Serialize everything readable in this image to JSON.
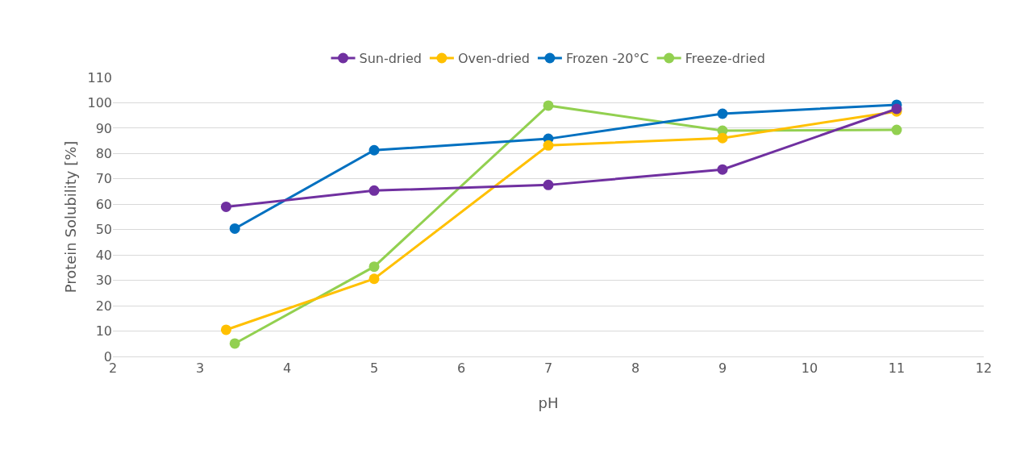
{
  "chart_data": {
    "type": "line",
    "xlabel": "pH",
    "ylabel": "Protein Solubility [%]",
    "xlim": [
      2,
      12
    ],
    "xticks": [
      2,
      3,
      4,
      5,
      6,
      7,
      8,
      9,
      10,
      11,
      12
    ],
    "ylim": [
      0,
      110
    ],
    "yticks": [
      0,
      10,
      20,
      30,
      40,
      50,
      60,
      70,
      80,
      90,
      100,
      110
    ],
    "grid": "y",
    "legend": "top",
    "marker": "circle",
    "line_style": "solid",
    "series": [
      {
        "name": "Sun-dried",
        "color": "#7030a0",
        "x": [
          3.3,
          5,
          7,
          9,
          11
        ],
        "values": [
          59,
          65.4,
          67.6,
          73.7,
          97.6
        ]
      },
      {
        "name": "Oven-dried",
        "color": "#ffc000",
        "x": [
          3.3,
          5,
          7,
          9,
          11
        ],
        "values": [
          10.5,
          30.6,
          83.2,
          86.1,
          96.6
        ]
      },
      {
        "name": "Frozen -20°C",
        "color": "#0070c0",
        "x": [
          3.4,
          5,
          7,
          9,
          11
        ],
        "values": [
          50.4,
          81.3,
          85.8,
          95.7,
          99.2
        ]
      },
      {
        "name": "Freeze-dried",
        "color": "#92d050",
        "x": [
          3.4,
          5,
          7,
          9,
          11
        ],
        "values": [
          5.1,
          35.4,
          98.9,
          89,
          89.3
        ]
      }
    ]
  }
}
